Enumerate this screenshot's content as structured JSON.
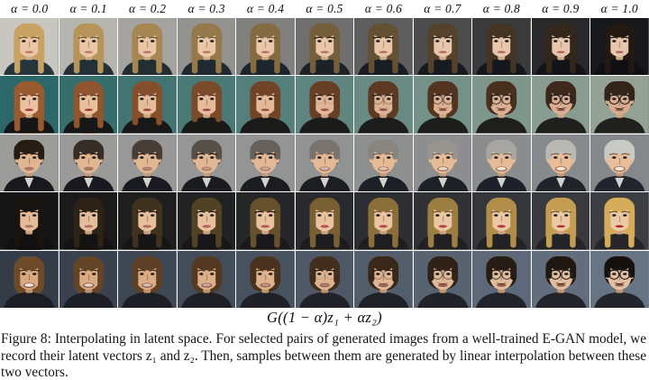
{
  "figure": {
    "alpha_labels": [
      "α = 0.0",
      "α = 0.1",
      "α = 0.2",
      "α = 0.3",
      "α = 0.4",
      "α = 0.5",
      "α = 0.6",
      "α = 0.7",
      "α = 0.8",
      "α = 0.9",
      "α = 1.0"
    ],
    "formula": "G((1 − α)z₁ + αz₂)",
    "caption": "Figure 8: Interpolating in latent space. For selected pairs of generated images from a well-trained E-GAN model, we record their latent vectors z₁ and z₂. Then, samples between them are generated by linear interpolation between these two vectors."
  },
  "grid": {
    "columns": 11,
    "alpha_values": [
      0.0,
      0.1,
      0.2,
      0.3,
      0.4,
      0.5,
      0.6,
      0.7,
      0.8,
      0.9,
      1.0
    ],
    "rows": [
      {
        "description": "blonde long-haired woman on light background interpolating to dark-haired pale woman on dark background",
        "from": {
          "bg": "#c8c6c0",
          "hair": "#c7a262",
          "skin": "#eac7a4",
          "lip": "#c27b6e",
          "cloth": "#26343c",
          "hair_len": 1,
          "smile": 0.15,
          "glasses": 0,
          "mustache": 0,
          "shirt": 0
        },
        "to": {
          "bg": "#17181c",
          "hair": "#221913",
          "skin": "#e7c6ae",
          "lip": "#aa6758",
          "cloth": "#101014",
          "hair_len": 1,
          "smile": 0.1,
          "glasses": 0,
          "mustache": 0,
          "shirt": 0
        }
      },
      {
        "description": "auburn-haired woman with red lips on teal background interpolating to dark-haired man with round glasses and mustache",
        "from": {
          "bg": "#2c686a",
          "hair": "#9a5a30",
          "skin": "#eac2a0",
          "lip": "#a03a3c",
          "cloth": "#161616",
          "hair_len": 1,
          "smile": 0.1,
          "glasses": 0,
          "mustache": 0,
          "shirt": 0
        },
        "to": {
          "bg": "#93a295",
          "hair": "#33241a",
          "skin": "#d8ab8d",
          "lip": "#8f6355",
          "cloth": "#20201e",
          "hair_len": 0.15,
          "smile": 0.15,
          "glasses": 1,
          "mustache": 1,
          "shirt": 0
        }
      },
      {
        "description": "dark-haired young man in suit on gray background interpolating to gray-haired laughing older man",
        "from": {
          "bg": "#9c9c9a",
          "hair": "#261c14",
          "skin": "#e0b591",
          "lip": "#a97868",
          "cloth": "#17171c",
          "hair_len": 0.15,
          "smile": 0.45,
          "glasses": 0,
          "mustache": 0,
          "shirt": 1
        },
        "to": {
          "bg": "#85888a",
          "hair": "#c9c9c5",
          "skin": "#e9bd98",
          "lip": "#a4705f",
          "cloth": "#20242c",
          "hair_len": 0.15,
          "smile": 1,
          "glasses": 0,
          "mustache": 0,
          "shirt": 1
        }
      },
      {
        "description": "black-haired woman with side bangs on dark background interpolating to blonde woman with bright red lips",
        "from": {
          "bg": "#161616",
          "hair": "#19140f",
          "skin": "#e5bc9a",
          "lip": "#b4766c",
          "cloth": "#111111",
          "hair_len": 1,
          "smile": 0.25,
          "glasses": 0,
          "mustache": 0,
          "shirt": 0
        },
        "to": {
          "bg": "#3c3e44",
          "hair": "#d6ac58",
          "skin": "#eccaa6",
          "lip": "#b02a32",
          "cloth": "#26262a",
          "hair_len": 1,
          "smile": 0.15,
          "glasses": 0,
          "mustache": 0,
          "shirt": 0
        }
      },
      {
        "description": "smiling brown-haired woman interpolating to black-haired man with round glasses and mustache on blue-gray background",
        "from": {
          "bg": "#343c48",
          "hair": "#6d4a2a",
          "skin": "#d9a87e",
          "lip": "#94584a",
          "cloth": "#1c1e24",
          "hair_len": 0.5,
          "smile": 0.9,
          "glasses": 0,
          "mustache": 0,
          "shirt": 0
        },
        "to": {
          "bg": "#677484",
          "hair": "#16110d",
          "skin": "#e4c0a2",
          "lip": "#8f5f52",
          "cloth": "#23252b",
          "hair_len": 0.2,
          "smile": 0.3,
          "glasses": 1,
          "mustache": 1,
          "shirt": 0
        }
      }
    ]
  }
}
